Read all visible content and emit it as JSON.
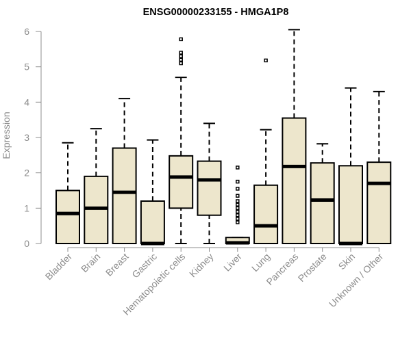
{
  "chart_data": {
    "type": "boxplot",
    "title": "ENSG00000233155 - HMGA1P8",
    "xlabel": "",
    "ylabel": "Expression",
    "ylim": [
      0,
      6
    ],
    "yticks": [
      0,
      1,
      2,
      3,
      4,
      5,
      6
    ],
    "grid": false,
    "categories": [
      "Bladder",
      "Brain",
      "Breast",
      "Gastric",
      "Hematopoietic cells",
      "Kidney",
      "Liver",
      "Lung",
      "Pancreas",
      "Prostate",
      "Skin",
      "Unknown / Other"
    ],
    "boxes": [
      {
        "min": 0,
        "q1": 0,
        "median": 0.85,
        "q3": 1.5,
        "max": 2.85,
        "outliers": []
      },
      {
        "min": 0,
        "q1": 0,
        "median": 1.0,
        "q3": 1.9,
        "max": 3.25,
        "outliers": []
      },
      {
        "min": 0,
        "q1": 0,
        "median": 1.45,
        "q3": 2.7,
        "max": 4.1,
        "outliers": []
      },
      {
        "min": 0,
        "q1": 0,
        "median": 0.0,
        "q3": 1.2,
        "max": 2.93,
        "outliers": []
      },
      {
        "min": 0,
        "q1": 1.0,
        "median": 1.88,
        "q3": 2.48,
        "max": 4.7,
        "outliers": [
          5.1,
          5.2,
          5.3,
          5.4,
          5.78
        ]
      },
      {
        "min": 0,
        "q1": 0.8,
        "median": 1.8,
        "q3": 2.33,
        "max": 3.4,
        "outliers": []
      },
      {
        "min": 0,
        "q1": 0,
        "median": 0.02,
        "q3": 0.17,
        "max": 0.17,
        "outliers": [
          0.6,
          0.7,
          0.8,
          0.9,
          1.0,
          1.1,
          1.2,
          1.35,
          1.55,
          1.75,
          2.15
        ]
      },
      {
        "min": 0,
        "q1": 0,
        "median": 0.5,
        "q3": 1.65,
        "max": 3.22,
        "outliers": [
          5.18
        ]
      },
      {
        "min": 0,
        "q1": 0,
        "median": 2.18,
        "q3": 3.55,
        "max": 6.05,
        "outliers": []
      },
      {
        "min": 0,
        "q1": 0,
        "median": 1.23,
        "q3": 2.28,
        "max": 2.82,
        "outliers": []
      },
      {
        "min": 0,
        "q1": 0,
        "median": 0.0,
        "q3": 2.2,
        "max": 4.4,
        "outliers": []
      },
      {
        "min": 0,
        "q1": 0,
        "median": 1.7,
        "q3": 2.3,
        "max": 4.3,
        "outliers": []
      }
    ],
    "colors": {
      "box_fill": "#ede6cc",
      "stroke": "#000000",
      "axis": "#8c8c8c"
    }
  }
}
